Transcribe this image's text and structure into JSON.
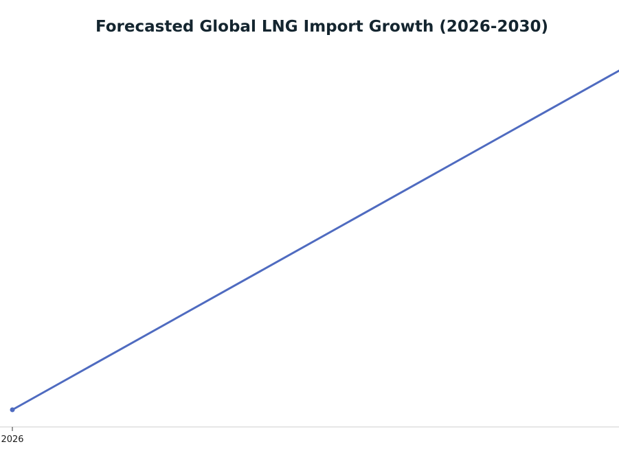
{
  "chart_data": {
    "type": "line",
    "title": "Forecasted Global LNG Import Growth (2026-2030)",
    "xlabel": "",
    "ylabel": "",
    "x": [
      2026,
      2030
    ],
    "x_tick_labels": [
      "2026"
    ],
    "xlim": [
      2026,
      2030
    ],
    "series": [
      {
        "values": [
          420,
          500
        ],
        "color": "#4f6bc0"
      }
    ],
    "ylim": [
      416,
      500
    ],
    "grid": false,
    "legend": "none",
    "axis_color": "#cccccc"
  }
}
